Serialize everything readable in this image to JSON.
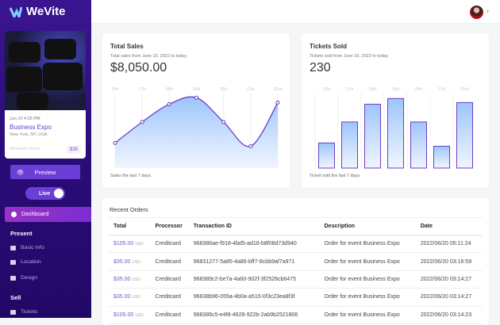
{
  "app": {
    "name": "WeVite"
  },
  "event": {
    "date": "Jun 10 4:26 PM",
    "name": "Business Expo",
    "location": "New York, NY, USA",
    "tags": "#Business #Expo",
    "price": "$35"
  },
  "sidebar": {
    "preview_label": "Preview",
    "live_label": "Live",
    "live_on": true,
    "dashboard_label": "Dashboard",
    "sections": [
      {
        "title": "Present",
        "items": [
          {
            "label": "Basic Info",
            "icon": "text-icon"
          },
          {
            "label": "Location",
            "icon": "map-icon"
          },
          {
            "label": "Design",
            "icon": "image-icon"
          }
        ]
      },
      {
        "title": "Sell",
        "items": [
          {
            "label": "Tickets",
            "icon": "ticket-icon"
          }
        ]
      }
    ]
  },
  "total_sales": {
    "title": "Total Sales",
    "subtitle": "Total sales from June 10, 2022 to today.",
    "value": "$8,050.00",
    "footer": "Sales the last 7 days."
  },
  "tickets_sold": {
    "title": "Tickets Sold",
    "subtitle": "Tickets sold from June 10, 2022 to today.",
    "value": "230",
    "footer": "Ticket sold the last 7 days."
  },
  "chart_data": [
    {
      "type": "area",
      "categories": [
        "16th",
        "17th",
        "18th",
        "19th",
        "20th",
        "21st",
        "22nd"
      ],
      "values": [
        31,
        57,
        79,
        87,
        57,
        27,
        81
      ],
      "ylim": [
        0,
        100
      ],
      "grid": true,
      "color": "#6a3fc8"
    },
    {
      "type": "bar",
      "categories": [
        "16th",
        "17th",
        "18th",
        "19th",
        "20th",
        "21st",
        "22nd"
      ],
      "values": [
        31,
        57,
        79,
        86,
        57,
        27,
        81
      ],
      "ylim": [
        0,
        100
      ],
      "grid": true,
      "color": "#6a3fc8"
    }
  ],
  "orders": {
    "title": "Recent Orders",
    "columns": [
      "Total",
      "Processor",
      "Transaction ID",
      "Description",
      "Date"
    ],
    "rows": [
      {
        "amount": "$105.00",
        "currency": "USD",
        "processor": "Creditcard",
        "id": "968386ae-f918-4bd5-ad18-b8f08d73d940",
        "description": "Order for event Business Expo",
        "date": "2022/06/20 05:11:24"
      },
      {
        "amount": "$35.00",
        "currency": "USD",
        "processor": "Creditcard",
        "id": "96831277-5a85-4a86-bff7-8cbb9af7a971",
        "description": "Order for event Business Expo",
        "date": "2022/06/20 03:16:59"
      },
      {
        "amount": "$35.00",
        "currency": "USD",
        "processor": "Creditcard",
        "id": "968389c2-be7a-4a60-902f-3f2526cb6475",
        "description": "Order for event Business Expo",
        "date": "2022/06/20 03:14:27"
      },
      {
        "amount": "$35.00",
        "currency": "USD",
        "processor": "Creditcard",
        "id": "96838b96-055a-4b0a-a515-0f3c23ea8f3f",
        "description": "Order for event Business Expo",
        "date": "2022/06/20 03:14:27"
      },
      {
        "amount": "$105.00",
        "currency": "USD",
        "processor": "Creditcard",
        "id": "968386c5-e4f8-4628-922b-2ab9b2521806",
        "description": "Order for event Business Expo",
        "date": "2022/06/20 03:14:23"
      }
    ]
  }
}
